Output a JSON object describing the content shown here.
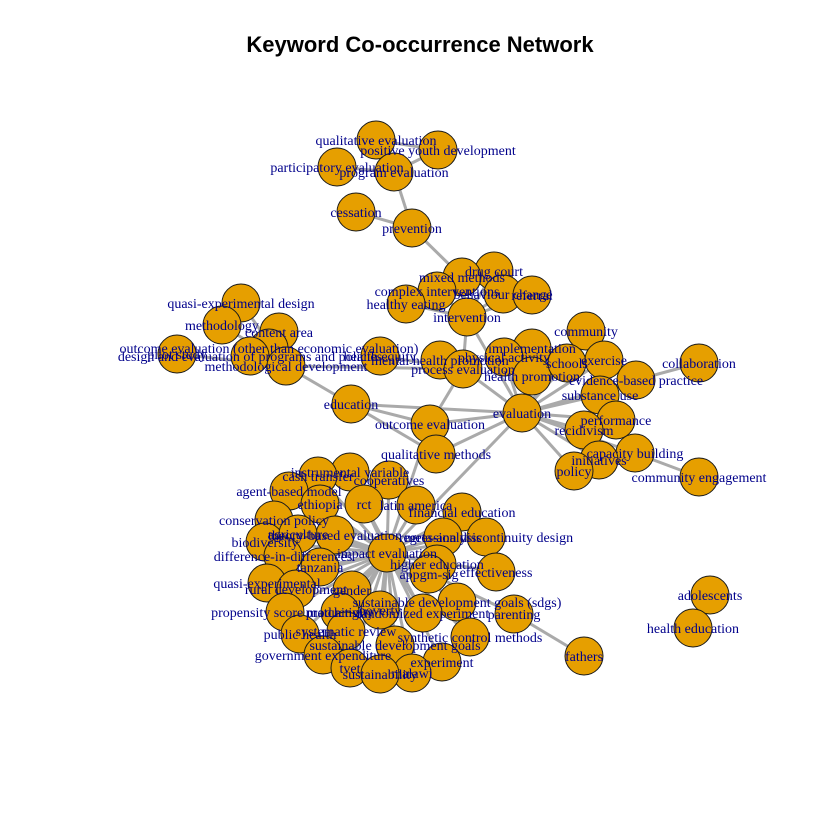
{
  "title": "Keyword Co-occurrence Network",
  "colors": {
    "node_fill": "#E69F00",
    "node_stroke": "#1a1a1a",
    "edge": "#AAAAAA",
    "label": "#00008B"
  },
  "nodes": [
    {
      "id": "qualitative evaluation",
      "label": "qualitative evaluation"
    },
    {
      "id": "positive youth development",
      "label": "positive youth development"
    },
    {
      "id": "participatory evaluation",
      "label": "participatory evaluation"
    },
    {
      "id": "program evaluation",
      "label": "program evaluation"
    },
    {
      "id": "cessation",
      "label": "cessation"
    },
    {
      "id": "prevention",
      "label": "prevention"
    },
    {
      "id": "drug court",
      "label": "drug court"
    },
    {
      "id": "mixed methods",
      "label": "mixed methods"
    },
    {
      "id": "complex interventions",
      "label": "complex interventions"
    },
    {
      "id": "behaviour change",
      "label": "behaviour change"
    },
    {
      "id": "referral",
      "label": "referral"
    },
    {
      "id": "healthy eating",
      "label": "healthy eating"
    },
    {
      "id": "intervention",
      "label": "intervention"
    },
    {
      "id": "quasi-experimental design",
      "label": "quasi-experimental design"
    },
    {
      "id": "methodology",
      "label": "methodology"
    },
    {
      "id": "content area",
      "label": "content area"
    },
    {
      "id": "outcome evaluation (other than economic evaluation)",
      "label": "outcome evaluation (other than economic evaluation)"
    },
    {
      "id": "design and evaluation of programs and policies",
      "label": "design and evaluation of programs and policies"
    },
    {
      "id": "health equity",
      "label": "health equity"
    },
    {
      "id": "methodological development",
      "label": "methodological development"
    },
    {
      "id": "pilot study",
      "label": "pilot study"
    },
    {
      "id": "community",
      "label": "community"
    },
    {
      "id": "implementation",
      "label": "implementation"
    },
    {
      "id": "physical activity",
      "label": "physical activity"
    },
    {
      "id": "mental health promotion",
      "label": "mental health promotion"
    },
    {
      "id": "process evaluation",
      "label": "process evaluation"
    },
    {
      "id": "health promotion",
      "label": "health promotion"
    },
    {
      "id": "schools",
      "label": "schools"
    },
    {
      "id": "exercise",
      "label": "exercise"
    },
    {
      "id": "collaboration",
      "label": "collaboration"
    },
    {
      "id": "evidence-based practice",
      "label": "evidence-based practice"
    },
    {
      "id": "substance use",
      "label": "substance use"
    },
    {
      "id": "education",
      "label": "education"
    },
    {
      "id": "evaluation",
      "label": "evaluation"
    },
    {
      "id": "performance",
      "label": "performance"
    },
    {
      "id": "recidivism",
      "label": "recidivism"
    },
    {
      "id": "outcome evaluation",
      "label": "outcome evaluation"
    },
    {
      "id": "qualitative methods",
      "label": "qualitative methods"
    },
    {
      "id": "capacity building",
      "label": "capacity building"
    },
    {
      "id": "initiatives",
      "label": "initiatives"
    },
    {
      "id": "policy",
      "label": "policy"
    },
    {
      "id": "community engagement",
      "label": "community engagement"
    },
    {
      "id": "instrumental variable",
      "label": "instrumental variable"
    },
    {
      "id": "cash transfer",
      "label": "cash transfer"
    },
    {
      "id": "cooperatives",
      "label": "cooperatives"
    },
    {
      "id": "agent-based model",
      "label": "agent-based model"
    },
    {
      "id": "rct",
      "label": "rct"
    },
    {
      "id": "ethiopia",
      "label": "ethiopia"
    },
    {
      "id": "latin america",
      "label": "latin america"
    },
    {
      "id": "financial education",
      "label": "financial education"
    },
    {
      "id": "conservation policy",
      "label": "conservation policy"
    },
    {
      "id": "theory-based evaluation",
      "label": "theory-based evaluation"
    },
    {
      "id": "meta-analysis",
      "label": "meta-analysis"
    },
    {
      "id": "regression discontinuity design",
      "label": "regression discontinuity design"
    },
    {
      "id": "biodiversity",
      "label": "biodiversity"
    },
    {
      "id": "agriculture",
      "label": "agriculture"
    },
    {
      "id": "difference-in-differences",
      "label": "difference-in-differences"
    },
    {
      "id": "impact evaluation",
      "label": "impact evaluation"
    },
    {
      "id": "tanzania",
      "label": "tanzania"
    },
    {
      "id": "higher education",
      "label": "higher education"
    },
    {
      "id": "appgm-sig",
      "label": "appgm-sig"
    },
    {
      "id": "effectiveness",
      "label": "effectiveness"
    },
    {
      "id": "quasi-experimental",
      "label": "quasi-experimental"
    },
    {
      "id": "rural development",
      "label": "rural development"
    },
    {
      "id": "gender",
      "label": "gender"
    },
    {
      "id": "sustainable development goals (sdgs)",
      "label": "sustainable development goals (sdgs)"
    },
    {
      "id": "propensity score matching",
      "label": "propensity score matching"
    },
    {
      "id": "productivity",
      "label": "productivity"
    },
    {
      "id": "randomized experiment",
      "label": "randomized experiment"
    },
    {
      "id": "poverty",
      "label": "poverty"
    },
    {
      "id": "parenting",
      "label": "parenting"
    },
    {
      "id": "public health",
      "label": "public health"
    },
    {
      "id": "systematic review",
      "label": "systematic review"
    },
    {
      "id": "synthetic control methods",
      "label": "synthetic control methods"
    },
    {
      "id": "sustainable development goals",
      "label": "sustainable development goals"
    },
    {
      "id": "government expenditure",
      "label": "government expenditure"
    },
    {
      "id": "experiment",
      "label": "experiment"
    },
    {
      "id": "tvet",
      "label": "tvet"
    },
    {
      "id": "malawi",
      "label": "malawi"
    },
    {
      "id": "sustainability",
      "label": "sustainability"
    },
    {
      "id": "fathers",
      "label": "fathers"
    },
    {
      "id": "adolescents",
      "label": "adolescents"
    },
    {
      "id": "health education",
      "label": "health education"
    }
  ],
  "edges": [
    [
      "qualitative evaluation",
      "program evaluation"
    ],
    [
      "positive youth development",
      "program evaluation"
    ],
    [
      "participatory evaluation",
      "program evaluation"
    ],
    [
      "qualitative evaluation",
      "positive youth development"
    ],
    [
      "program evaluation",
      "prevention"
    ],
    [
      "cessation",
      "prevention"
    ],
    [
      "prevention",
      "mixed methods"
    ],
    [
      "drug court",
      "intervention"
    ],
    [
      "mixed methods",
      "intervention"
    ],
    [
      "complex interventions",
      "intervention"
    ],
    [
      "behaviour change",
      "intervention"
    ],
    [
      "referral",
      "intervention"
    ],
    [
      "healthy eating",
      "intervention"
    ],
    [
      "intervention",
      "process evaluation"
    ],
    [
      "intervention",
      "evaluation"
    ],
    [
      "quasi-experimental design",
      "methodological development"
    ],
    [
      "methodology",
      "methodological development"
    ],
    [
      "content area",
      "methodological development"
    ],
    [
      "outcome evaluation (other than economic evaluation)",
      "methodological development"
    ],
    [
      "design and evaluation of programs and policies",
      "methodological development"
    ],
    [
      "pilot study",
      "methodological development"
    ],
    [
      "methodological development",
      "education"
    ],
    [
      "methodological development",
      "process evaluation"
    ],
    [
      "health equity",
      "process evaluation"
    ],
    [
      "mental health promotion",
      "process evaluation"
    ],
    [
      "process evaluation",
      "outcome evaluation"
    ],
    [
      "process evaluation",
      "evaluation"
    ],
    [
      "education",
      "evaluation"
    ],
    [
      "education",
      "outcome evaluation"
    ],
    [
      "education",
      "qualitative methods"
    ],
    [
      "community",
      "evaluation"
    ],
    [
      "implementation",
      "evaluation"
    ],
    [
      "physical activity",
      "evaluation"
    ],
    [
      "health promotion",
      "evaluation"
    ],
    [
      "schools",
      "evaluation"
    ],
    [
      "exercise",
      "evaluation"
    ],
    [
      "evidence-based practice",
      "evaluation"
    ],
    [
      "collaboration",
      "evidence-based practice"
    ],
    [
      "substance use",
      "evaluation"
    ],
    [
      "performance",
      "evaluation"
    ],
    [
      "recidivism",
      "evaluation"
    ],
    [
      "capacity building",
      "evaluation"
    ],
    [
      "initiatives",
      "evaluation"
    ],
    [
      "policy",
      "evaluation"
    ],
    [
      "community engagement",
      "capacity building"
    ],
    [
      "outcome evaluation",
      "evaluation"
    ],
    [
      "qualitative methods",
      "evaluation"
    ],
    [
      "outcome evaluation",
      "impact evaluation"
    ],
    [
      "evaluation",
      "impact evaluation"
    ],
    [
      "impact evaluation",
      "instrumental variable"
    ],
    [
      "impact evaluation",
      "cash transfer"
    ],
    [
      "impact evaluation",
      "cooperatives"
    ],
    [
      "impact evaluation",
      "agent-based model"
    ],
    [
      "impact evaluation",
      "rct"
    ],
    [
      "impact evaluation",
      "ethiopia"
    ],
    [
      "impact evaluation",
      "latin america"
    ],
    [
      "impact evaluation",
      "financial education"
    ],
    [
      "impact evaluation",
      "conservation policy"
    ],
    [
      "impact evaluation",
      "theory-based evaluation"
    ],
    [
      "impact evaluation",
      "meta-analysis"
    ],
    [
      "impact evaluation",
      "regression discontinuity design"
    ],
    [
      "impact evaluation",
      "biodiversity"
    ],
    [
      "impact evaluation",
      "agriculture"
    ],
    [
      "impact evaluation",
      "difference-in-differences"
    ],
    [
      "impact evaluation",
      "tanzania"
    ],
    [
      "impact evaluation",
      "higher education"
    ],
    [
      "impact evaluation",
      "appgm-sig"
    ],
    [
      "impact evaluation",
      "effectiveness"
    ],
    [
      "impact evaluation",
      "quasi-experimental"
    ],
    [
      "impact evaluation",
      "rural development"
    ],
    [
      "impact evaluation",
      "gender"
    ],
    [
      "impact evaluation",
      "sustainable development goals (sdgs)"
    ],
    [
      "impact evaluation",
      "propensity score matching"
    ],
    [
      "impact evaluation",
      "productivity"
    ],
    [
      "impact evaluation",
      "randomized experiment"
    ],
    [
      "impact evaluation",
      "poverty"
    ],
    [
      "impact evaluation",
      "parenting"
    ],
    [
      "impact evaluation",
      "public health"
    ],
    [
      "impact evaluation",
      "systematic review"
    ],
    [
      "impact evaluation",
      "synthetic control methods"
    ],
    [
      "impact evaluation",
      "sustainable development goals"
    ],
    [
      "impact evaluation",
      "government expenditure"
    ],
    [
      "impact evaluation",
      "experiment"
    ],
    [
      "impact evaluation",
      "tvet"
    ],
    [
      "impact evaluation",
      "malawi"
    ],
    [
      "impact evaluation",
      "sustainability"
    ],
    [
      "conservation policy",
      "biodiversity"
    ],
    [
      "difference-in-differences",
      "propensity score matching"
    ],
    [
      "rct",
      "randomized experiment"
    ],
    [
      "parenting",
      "fathers"
    ],
    [
      "adolescents",
      "health education"
    ]
  ]
}
